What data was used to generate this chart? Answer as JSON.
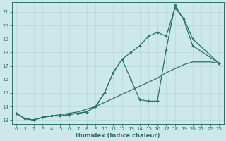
{
  "xlabel": "Humidex (Indice chaleur)",
  "bg_color": "#cce8e8",
  "grid_color": "#b8d8d8",
  "line_color": "#2a7070",
  "xlim": [
    -0.5,
    23.5
  ],
  "ylim": [
    12.7,
    21.7
  ],
  "xticks": [
    0,
    1,
    2,
    3,
    4,
    5,
    6,
    7,
    8,
    9,
    10,
    11,
    12,
    13,
    14,
    15,
    16,
    17,
    18,
    19,
    20,
    21,
    22,
    23
  ],
  "yticks": [
    13,
    14,
    15,
    16,
    17,
    18,
    19,
    20,
    21
  ],
  "line1_x": [
    0,
    1,
    2,
    3,
    4,
    5,
    6,
    7,
    8,
    9,
    10,
    11,
    12,
    13,
    14,
    15,
    16,
    17,
    18,
    19,
    20,
    23
  ],
  "line1_y": [
    13.5,
    13.1,
    13.0,
    13.2,
    13.3,
    13.3,
    13.4,
    13.5,
    13.6,
    14.0,
    15.0,
    16.5,
    17.5,
    18.0,
    18.5,
    19.2,
    19.5,
    19.2,
    21.3,
    20.5,
    19.0,
    17.2
  ],
  "line2_x": [
    0,
    1,
    2,
    3,
    4,
    5,
    6,
    7,
    8,
    9,
    10,
    11,
    12,
    13,
    14,
    15,
    16,
    17,
    18,
    19,
    20,
    23
  ],
  "line2_y": [
    13.5,
    13.1,
    13.0,
    13.2,
    13.3,
    13.3,
    13.4,
    13.5,
    13.6,
    14.0,
    15.0,
    16.5,
    17.5,
    16.0,
    14.5,
    14.4,
    14.4,
    18.2,
    21.5,
    20.4,
    18.5,
    17.2
  ],
  "line3_x": [
    0,
    1,
    2,
    3,
    4,
    5,
    6,
    7,
    8,
    9,
    10,
    11,
    12,
    13,
    14,
    15,
    16,
    17,
    18,
    19,
    20,
    21,
    22,
    23
  ],
  "line3_y": [
    13.5,
    13.1,
    13.0,
    13.2,
    13.3,
    13.4,
    13.5,
    13.6,
    13.8,
    14.0,
    14.3,
    14.6,
    14.9,
    15.2,
    15.5,
    15.8,
    16.1,
    16.5,
    16.8,
    17.1,
    17.3,
    17.3,
    17.3,
    17.2
  ]
}
